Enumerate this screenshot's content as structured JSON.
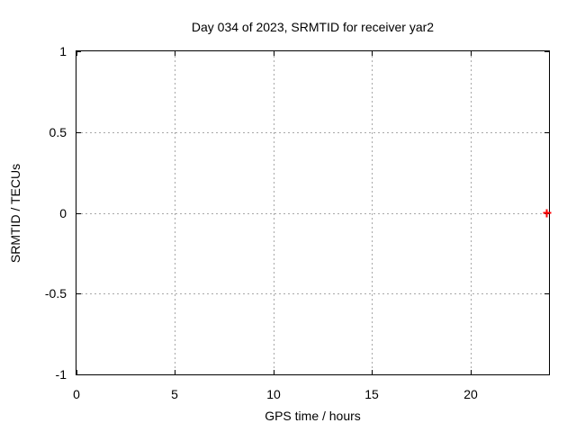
{
  "chart_data": {
    "type": "scatter",
    "title": "Day 034 of 2023, SRMTID for receiver yar2",
    "xlabel": "GPS time / hours",
    "ylabel": "SRMTID / TECUs",
    "xlim": [
      0,
      24
    ],
    "ylim": [
      -1,
      1
    ],
    "xticks": [
      0,
      5,
      10,
      15,
      20
    ],
    "yticks": [
      -1,
      -0.5,
      0,
      0.5,
      1
    ],
    "xtick_labels": [
      "0",
      "5",
      "10",
      "15",
      "20"
    ],
    "ytick_labels": [
      "-1",
      "-0.5",
      "0",
      "0.5",
      "1"
    ],
    "grid": true,
    "legend": "none",
    "series": [
      {
        "name": "SRMTID",
        "marker": "plus",
        "color": "#ff0000",
        "points": [
          {
            "x": 23.9,
            "y": 0
          }
        ]
      }
    ],
    "colors": {
      "background": "#ffffff",
      "border": "#000000",
      "grid": "#a8a8a8",
      "text": "#000000"
    }
  }
}
